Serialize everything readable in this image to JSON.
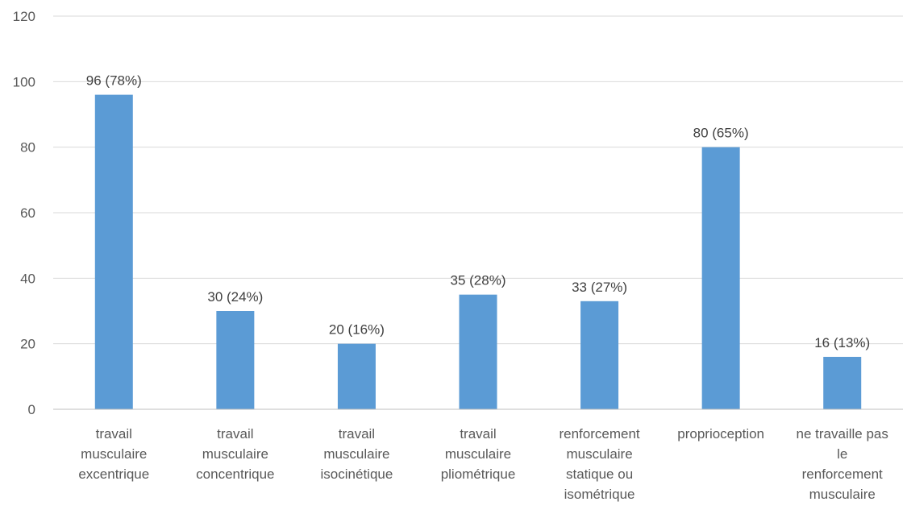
{
  "chart_data": {
    "type": "bar",
    "categories": [
      "travail musculaire excentrique",
      "travail musculaire concentrique",
      "travail musculaire isocinétique",
      "travail musculaire pliométrique",
      "renforcement musculaire statique ou isométrique",
      "proprioception",
      "ne travaille pas le renforcement musculaire"
    ],
    "category_lines": [
      [
        "travail",
        "musculaire",
        "excentrique"
      ],
      [
        "travail",
        "musculaire",
        "concentrique"
      ],
      [
        "travail",
        "musculaire",
        "isocinétique"
      ],
      [
        "travail",
        "musculaire",
        "pliométrique"
      ],
      [
        "renforcement",
        "musculaire",
        "statique ou",
        "isométrique"
      ],
      [
        "proprioception"
      ],
      [
        "ne travaille pas",
        "le",
        "renforcement",
        "musculaire"
      ]
    ],
    "values": [
      96,
      30,
      20,
      35,
      33,
      80,
      16
    ],
    "data_labels": [
      "96 (78%)",
      "30 (24%)",
      "20 (16%)",
      "35 (28%)",
      "33 (27%)",
      "80 (65%)",
      "16 (13%)"
    ],
    "ylim": [
      0,
      120
    ],
    "yticks": [
      0,
      20,
      40,
      60,
      80,
      100,
      120
    ],
    "title": "",
    "xlabel": "",
    "ylabel": "",
    "grid": true,
    "legend": "none",
    "bar_color": "#5b9bd5"
  }
}
